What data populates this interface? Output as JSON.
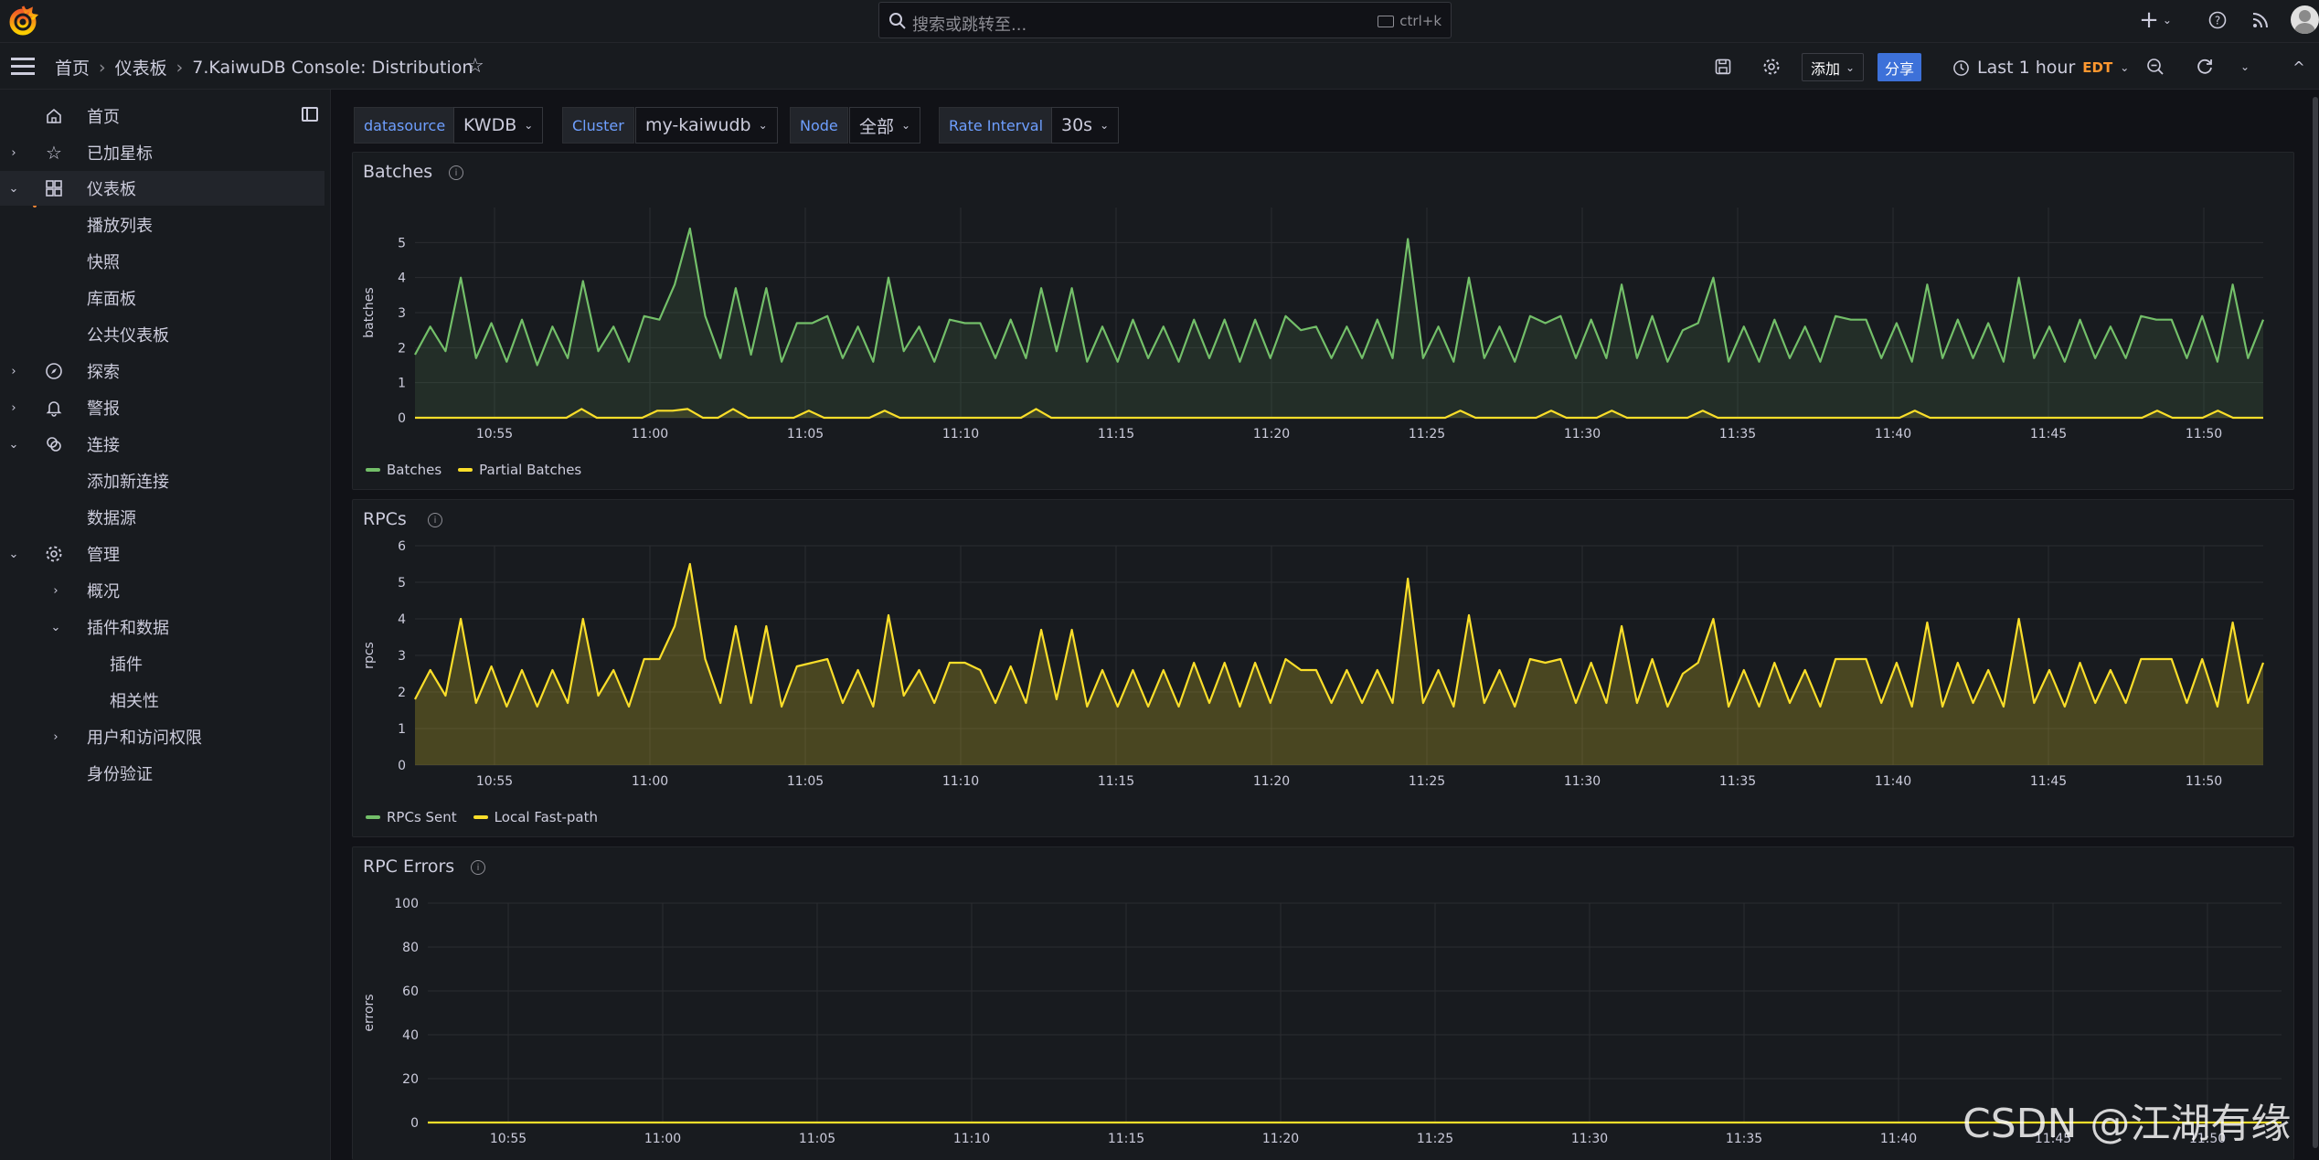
{
  "topbar": {
    "search_placeholder": "搜索或跳转至...",
    "search_shortcut": "ctrl+k"
  },
  "navbar": {
    "breadcrumb": [
      "首页",
      "仪表板",
      "7.KaiwuDB Console: Distribution"
    ],
    "add_label": "添加",
    "share_label": "分享",
    "time_range": "Last 1 hour",
    "timezone": "EDT"
  },
  "sidebar": {
    "items": [
      {
        "label": "首页",
        "icon": "home-icon"
      },
      {
        "label": "已加星标",
        "icon": "star-icon"
      },
      {
        "label": "仪表板",
        "icon": "grid-icon"
      },
      {
        "label": "播放列表"
      },
      {
        "label": "快照"
      },
      {
        "label": "库面板"
      },
      {
        "label": "公共仪表板"
      },
      {
        "label": "探索",
        "icon": "compass-icon"
      },
      {
        "label": "警报",
        "icon": "bell-icon"
      },
      {
        "label": "连接",
        "icon": "link-icon"
      },
      {
        "label": "添加新连接"
      },
      {
        "label": "数据源"
      },
      {
        "label": "管理",
        "icon": "gear-icon"
      },
      {
        "label": "概况"
      },
      {
        "label": "插件和数据"
      },
      {
        "label": "插件"
      },
      {
        "label": "相关性"
      },
      {
        "label": "用户和访问权限"
      },
      {
        "label": "身份验证"
      }
    ]
  },
  "variables": [
    {
      "label": "datasource",
      "value": "KWDB"
    },
    {
      "label": "Cluster",
      "value": "my-kaiwudb"
    },
    {
      "label": "Node",
      "value": "全部"
    },
    {
      "label": "Rate Interval",
      "value": "30s"
    }
  ],
  "colors": {
    "green": "#73bf69",
    "yellow": "#fade2a",
    "accent": "#f55f3e",
    "share_blue": "#3d71d9"
  },
  "watermark": "CSDN @江湖有缘",
  "chart_data": [
    {
      "type": "line",
      "title": "Batches",
      "ylabel": "batches",
      "ylim": [
        0,
        6
      ],
      "yticks": [
        0,
        1,
        2,
        3,
        4,
        5
      ],
      "x_ticks": [
        "10:55",
        "11:00",
        "11:05",
        "11:10",
        "11:15",
        "11:20",
        "11:25",
        "11:30",
        "11:35",
        "11:40",
        "11:45",
        "11:50"
      ],
      "series": [
        {
          "name": "Batches",
          "color": "#73bf69",
          "values": [
            1.8,
            2.6,
            1.9,
            4.0,
            1.7,
            2.7,
            1.6,
            2.8,
            1.5,
            2.6,
            1.7,
            3.9,
            1.9,
            2.6,
            1.6,
            2.9,
            2.8,
            3.8,
            5.4,
            2.9,
            1.7,
            3.7,
            1.8,
            3.7,
            1.6,
            2.7,
            2.7,
            2.9,
            1.7,
            2.6,
            1.6,
            4.0,
            1.9,
            2.6,
            1.6,
            2.8,
            2.7,
            2.7,
            1.7,
            2.8,
            1.7,
            3.7,
            1.9,
            3.7,
            1.6,
            2.6,
            1.6,
            2.8,
            1.7,
            2.6,
            1.6,
            2.8,
            1.7,
            2.8,
            1.6,
            2.8,
            1.7,
            2.9,
            2.5,
            2.6,
            1.7,
            2.6,
            1.7,
            2.8,
            1.7,
            5.1,
            1.7,
            2.6,
            1.6,
            4.0,
            1.7,
            2.6,
            1.6,
            2.9,
            2.7,
            2.9,
            1.7,
            2.8,
            1.7,
            3.8,
            1.7,
            2.9,
            1.6,
            2.5,
            2.7,
            4.0,
            1.6,
            2.6,
            1.6,
            2.8,
            1.7,
            2.6,
            1.6,
            2.9,
            2.8,
            2.8,
            1.7,
            2.7,
            1.6,
            3.8,
            1.7,
            2.8,
            1.7,
            2.7,
            1.6,
            4.0,
            1.7,
            2.6,
            1.6,
            2.8,
            1.7,
            2.6,
            1.7,
            2.9,
            2.8,
            2.8,
            1.7,
            2.9,
            1.6,
            3.8,
            1.7,
            2.8
          ]
        },
        {
          "name": "Partial Batches",
          "color": "#fade2a",
          "values": [
            0,
            0,
            0,
            0,
            0,
            0,
            0,
            0,
            0,
            0,
            0,
            0.25,
            0,
            0,
            0,
            0,
            0.2,
            0.2,
            0.25,
            0,
            0,
            0.25,
            0,
            0,
            0,
            0,
            0.2,
            0,
            0,
            0,
            0,
            0.2,
            0,
            0,
            0,
            0,
            0,
            0,
            0,
            0,
            0,
            0.25,
            0,
            0,
            0,
            0,
            0,
            0,
            0,
            0,
            0,
            0,
            0,
            0,
            0,
            0,
            0,
            0,
            0,
            0,
            0,
            0,
            0,
            0,
            0,
            0,
            0,
            0,
            0,
            0.2,
            0,
            0,
            0,
            0,
            0,
            0.2,
            0,
            0,
            0,
            0.2,
            0,
            0,
            0,
            0,
            0,
            0.2,
            0,
            0,
            0,
            0,
            0,
            0,
            0,
            0,
            0,
            0,
            0,
            0,
            0,
            0.2,
            0,
            0,
            0,
            0,
            0,
            0,
            0,
            0,
            0,
            0,
            0,
            0,
            0,
            0,
            0,
            0.2,
            0,
            0,
            0,
            0.2,
            0,
            0,
            0
          ]
        }
      ]
    },
    {
      "type": "area",
      "title": "RPCs",
      "ylabel": "rpcs",
      "ylim": [
        0,
        6
      ],
      "yticks": [
        0,
        1,
        2,
        3,
        4,
        5,
        6
      ],
      "x_ticks": [
        "10:55",
        "11:00",
        "11:05",
        "11:10",
        "11:15",
        "11:20",
        "11:25",
        "11:30",
        "11:35",
        "11:40",
        "11:45",
        "11:50"
      ],
      "series": [
        {
          "name": "RPCs Sent",
          "color": "#73bf69",
          "values": []
        },
        {
          "name": "Local Fast-path",
          "color": "#fade2a",
          "values": [
            1.8,
            2.6,
            1.9,
            4.0,
            1.7,
            2.7,
            1.6,
            2.6,
            1.6,
            2.6,
            1.7,
            4.0,
            1.9,
            2.6,
            1.6,
            2.9,
            2.9,
            3.8,
            5.5,
            2.9,
            1.7,
            3.8,
            1.7,
            3.8,
            1.6,
            2.7,
            2.8,
            2.9,
            1.7,
            2.6,
            1.6,
            4.1,
            1.9,
            2.6,
            1.7,
            2.8,
            2.8,
            2.6,
            1.7,
            2.7,
            1.7,
            3.7,
            1.8,
            3.7,
            1.6,
            2.6,
            1.6,
            2.6,
            1.6,
            2.6,
            1.6,
            2.8,
            1.7,
            2.8,
            1.6,
            2.8,
            1.7,
            2.9,
            2.6,
            2.6,
            1.7,
            2.6,
            1.7,
            2.6,
            1.7,
            5.1,
            1.7,
            2.6,
            1.6,
            4.1,
            1.7,
            2.6,
            1.6,
            2.9,
            2.8,
            2.9,
            1.7,
            2.8,
            1.7,
            3.8,
            1.7,
            2.9,
            1.6,
            2.5,
            2.8,
            4.0,
            1.6,
            2.6,
            1.6,
            2.8,
            1.7,
            2.6,
            1.6,
            2.9,
            2.9,
            2.9,
            1.7,
            2.8,
            1.6,
            3.9,
            1.6,
            2.8,
            1.7,
            2.6,
            1.6,
            4.0,
            1.7,
            2.6,
            1.6,
            2.8,
            1.7,
            2.6,
            1.7,
            2.9,
            2.9,
            2.9,
            1.7,
            2.9,
            1.6,
            3.9,
            1.7,
            2.8
          ]
        }
      ]
    },
    {
      "type": "line",
      "title": "RPC Errors",
      "ylabel": "errors",
      "ylim": [
        0,
        100
      ],
      "yticks": [
        0,
        20,
        40,
        60,
        80,
        100
      ],
      "x_ticks": [
        "10:55",
        "11:00",
        "11:05",
        "11:10",
        "11:15",
        "11:20",
        "11:25",
        "11:30",
        "11:35",
        "11:40",
        "11:45",
        "11:50"
      ],
      "series": [
        {
          "color": "#fade2a",
          "values": [
            0,
            0
          ]
        }
      ]
    }
  ]
}
